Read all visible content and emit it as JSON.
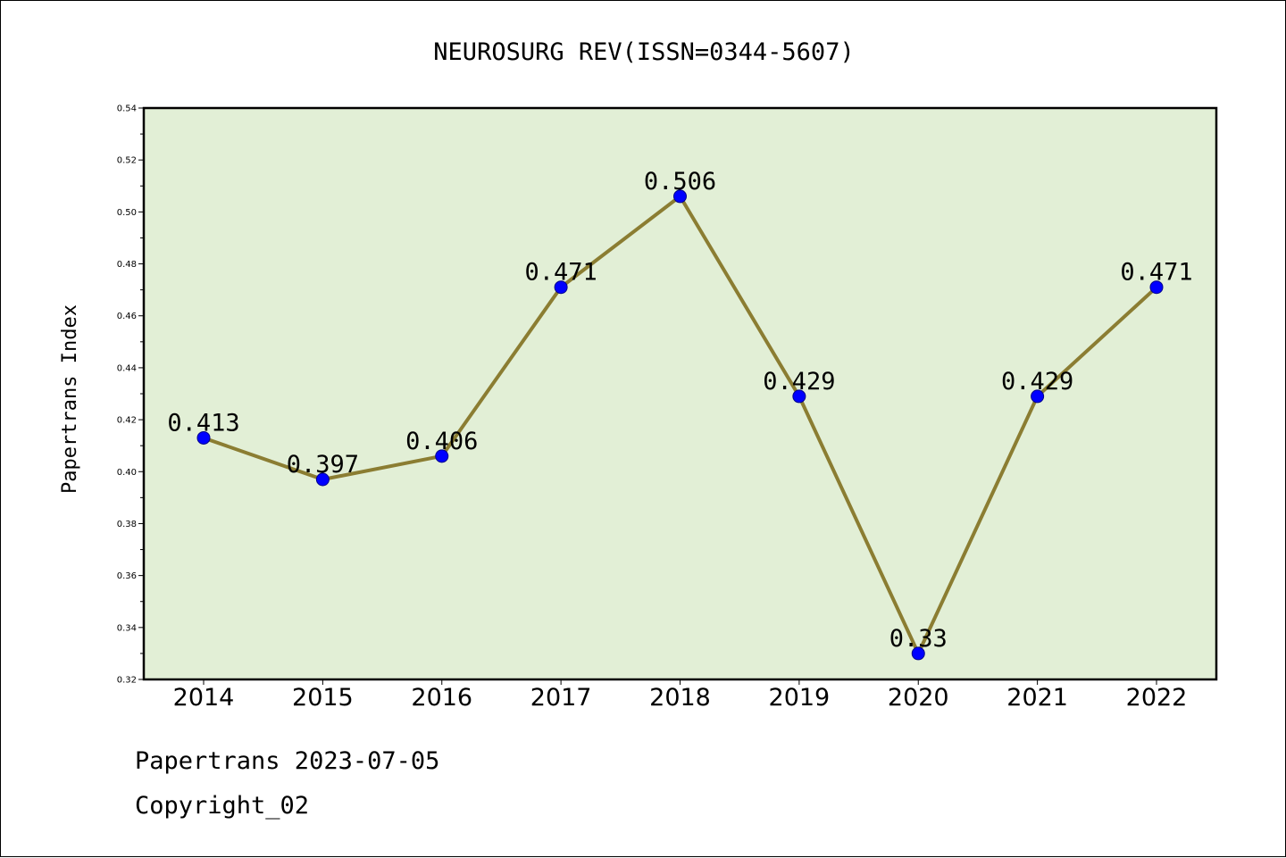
{
  "chart_data": {
    "type": "line",
    "title": "NEUROSURG REV(ISSN=0344-5607)",
    "xlabel": "",
    "ylabel": "Papertrans Index",
    "categories": [
      "2014",
      "2015",
      "2016",
      "2017",
      "2018",
      "2019",
      "2020",
      "2021",
      "2022"
    ],
    "series": [
      {
        "values": [
          0.413,
          0.397,
          0.406,
          0.471,
          0.506,
          0.429,
          0.33,
          0.429,
          0.471
        ],
        "labels": [
          "0.413",
          "0.397",
          "0.406",
          "0.471",
          "0.506",
          "0.429",
          "0.33",
          "0.429",
          "0.471"
        ]
      }
    ],
    "ylim": [
      0.32,
      0.54
    ],
    "yticks": [
      "0.32",
      "0.34",
      "0.36",
      "0.38",
      "0.40",
      "0.42",
      "0.44",
      "0.46",
      "0.48",
      "0.50",
      "0.52",
      "0.54"
    ],
    "grid": false,
    "colors": {
      "plot_background": "#e2efd6",
      "line": "#8b7d32",
      "marker": "#0000ff",
      "marker_edge": "#00008b"
    }
  },
  "footer": {
    "line1": "Papertrans 2023-07-05",
    "line2": "Copyright_02"
  }
}
